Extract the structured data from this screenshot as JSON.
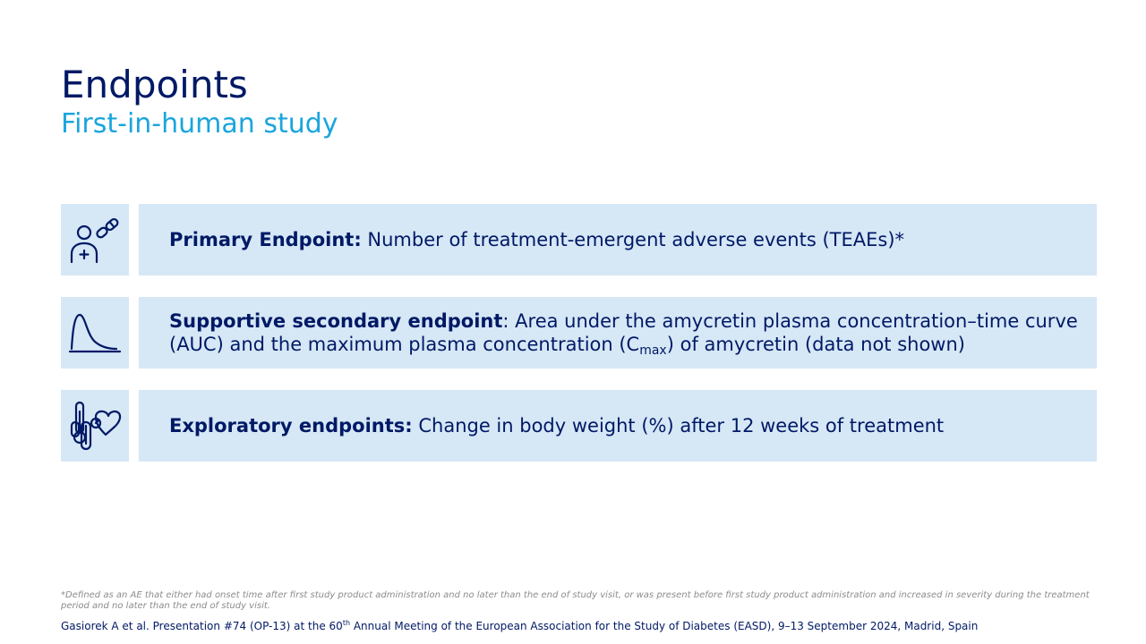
{
  "slide": {
    "title": "Endpoints",
    "subtitle": "First-in-human study"
  },
  "endpoints": [
    {
      "icon": "patient-with-pills-icon",
      "label": "Primary Endpoint:",
      "text": " Number of treatment-emergent adverse events (TEAEs)*"
    },
    {
      "icon": "concentration-curve-icon",
      "label": "Supportive secondary endpoint",
      "text_before": ": Area under the amycretin plasma concentration–time curve (AUC) and the maximum plasma concentration (C",
      "subscript": "max",
      "text_after": ") of amycretin (data not shown)"
    },
    {
      "icon": "thermometer-scale-heart-icon",
      "label": "Exploratory endpoints:",
      "text": " Change in body weight (%) after 12 weeks of treatment"
    }
  ],
  "footnote": "*Defined as an AE that either had onset time after first study product administration and no later than the end of study visit, or was present before first study product administration and increased in severity during the treatment period and no later than the end of study visit.",
  "reference": {
    "before": "Gasiorek A et al. Presentation #74 (OP-13) at the 60",
    "sup": "th",
    "after": " Annual Meeting of the European Association for the Study of Diabetes (EASD), 9–13 September 2024, Madrid, Spain"
  },
  "colors": {
    "navy": "#001965",
    "accent_blue": "#1aa5de",
    "panel_bg": "#d6e7f6",
    "footnote_gray": "#8c8c8c"
  }
}
